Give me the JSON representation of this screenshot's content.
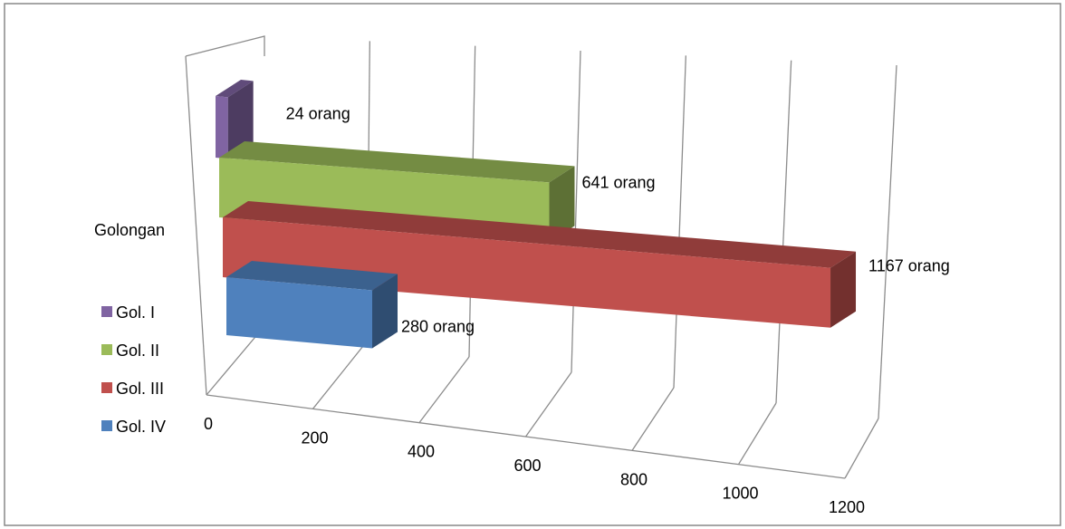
{
  "chart_data": {
    "type": "bar",
    "orientation": "horizontal",
    "three_d": true,
    "categories": [
      "Golongan"
    ],
    "category_axis_label": "Golongan",
    "series": [
      {
        "name": "Gol. I",
        "values": [
          24
        ],
        "label": "24 orang",
        "color": "#8064A2"
      },
      {
        "name": "Gol. II",
        "values": [
          641
        ],
        "label": "641 orang",
        "color": "#9BBB59"
      },
      {
        "name": "Gol. III",
        "values": [
          1167
        ],
        "label": "1167 orang",
        "color": "#C0504D"
      },
      {
        "name": "Gol. IV",
        "values": [
          280
        ],
        "label": "280 orang",
        "color": "#4F81BD"
      }
    ],
    "x_ticks": [
      "0",
      "200",
      "400",
      "600",
      "800",
      "1000",
      "1200"
    ],
    "xlim": [
      0,
      1200
    ],
    "grid": true,
    "legend_position": "left"
  }
}
